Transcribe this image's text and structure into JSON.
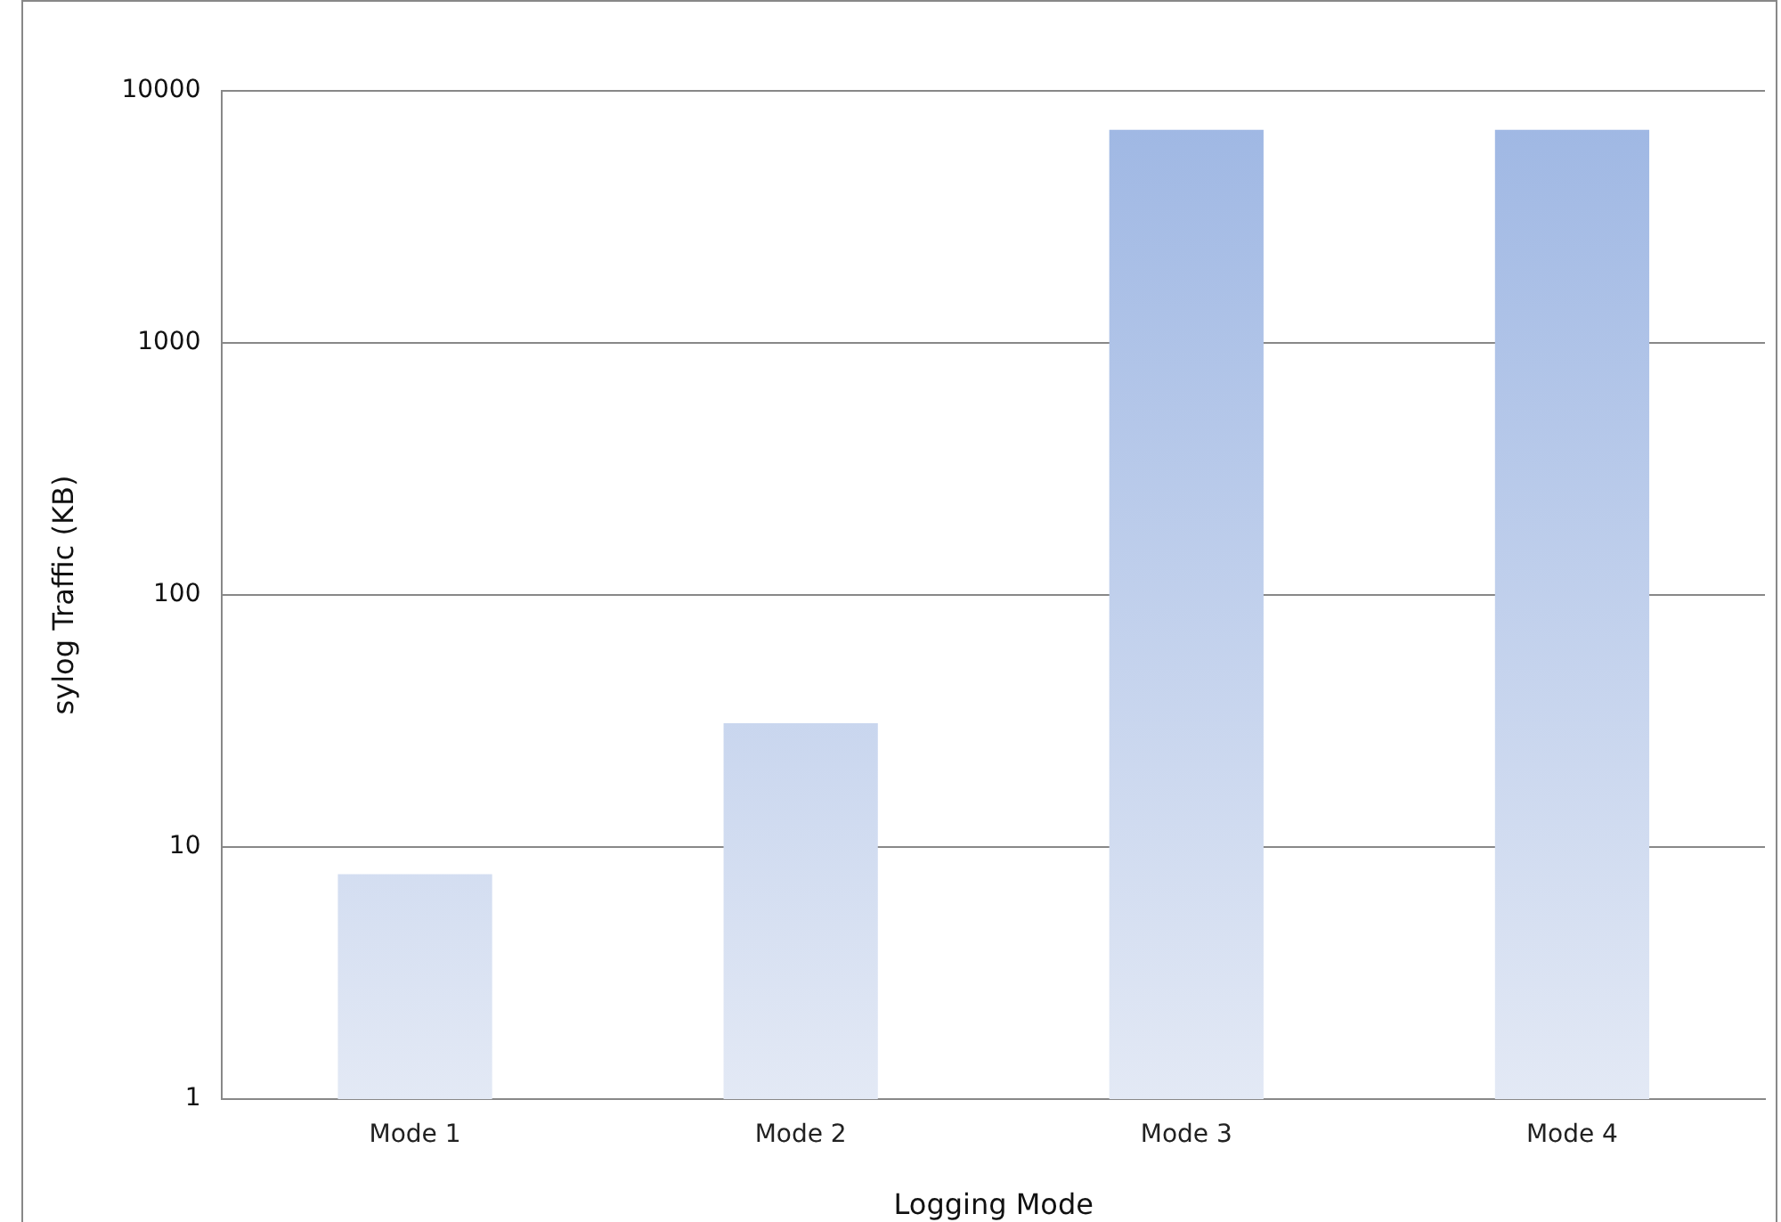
{
  "chart_data": {
    "type": "bar",
    "xlabel": "Logging Mode",
    "ylabel": "sylog Traffic (KB)",
    "categories": [
      "Mode 1",
      "Mode 2",
      "Mode 3",
      "Mode 4"
    ],
    "values": [
      7.8,
      31,
      7000,
      7000
    ],
    "color": "#9db6e3",
    "log": "y",
    "ylim": [
      1,
      10000
    ],
    "yticks": [
      1,
      10,
      100,
      1000,
      10000
    ],
    "grid": "y",
    "legend": false
  }
}
